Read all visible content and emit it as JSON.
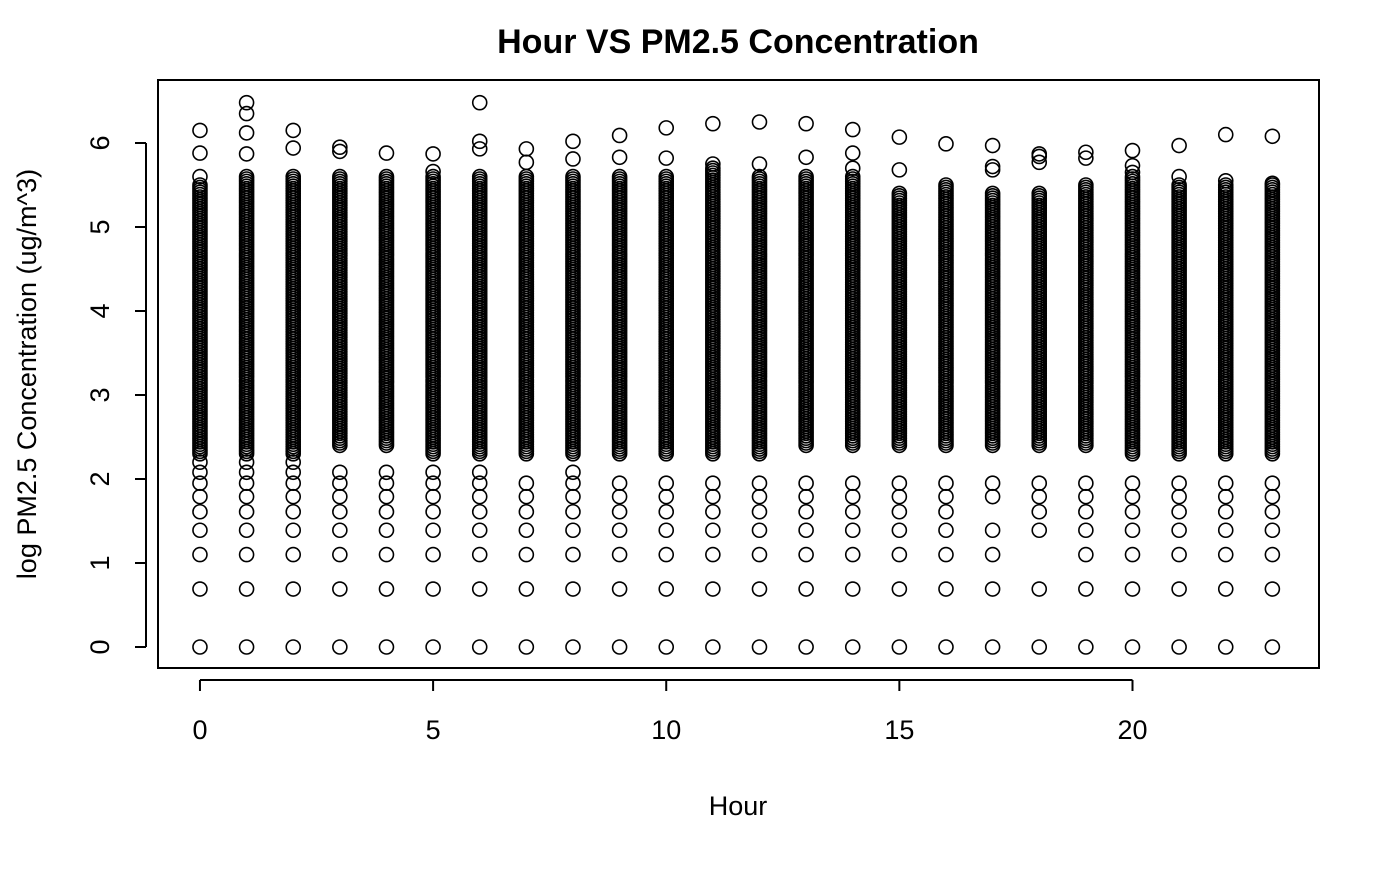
{
  "chart_data": {
    "type": "scatter",
    "title": "Hour VS PM2.5 Concentration",
    "xlabel": "Hour",
    "ylabel": "log PM2.5 Concentration (ug/m^3)",
    "xlim": [
      -0.9,
      24.0
    ],
    "ylim": [
      -0.25,
      6.75
    ],
    "xticks": [
      0,
      5,
      10,
      15,
      20
    ],
    "yticks": [
      0,
      1,
      2,
      3,
      4,
      5,
      6
    ],
    "marker": "open-circle",
    "grid": false,
    "legend": "none",
    "dense_band": {
      "description_values": "continuous overlapping points from about 2.2 to the listed top value per hour",
      "hours": [
        0,
        1,
        2,
        3,
        4,
        5,
        6,
        7,
        8,
        9,
        10,
        11,
        12,
        13,
        14,
        15,
        16,
        17,
        18,
        19,
        20,
        21,
        22,
        23
      ],
      "low": [
        2.3,
        2.3,
        2.3,
        2.4,
        2.4,
        2.3,
        2.3,
        2.3,
        2.3,
        2.3,
        2.3,
        2.3,
        2.3,
        2.4,
        2.4,
        2.4,
        2.4,
        2.4,
        2.4,
        2.4,
        2.3,
        2.3,
        2.3,
        2.3
      ],
      "high": [
        5.5,
        5.6,
        5.6,
        5.6,
        5.6,
        5.6,
        5.6,
        5.6,
        5.6,
        5.6,
        5.6,
        5.7,
        5.6,
        5.6,
        5.6,
        5.4,
        5.5,
        5.4,
        5.4,
        5.5,
        5.6,
        5.5,
        5.5,
        5.5
      ]
    },
    "points": {
      "hour": [
        0,
        0,
        0,
        0,
        0,
        0,
        0,
        0,
        0,
        0,
        0,
        0,
        1,
        1,
        1,
        1,
        1,
        1,
        1,
        1,
        1,
        1,
        1,
        1,
        1,
        2,
        2,
        2,
        2,
        2,
        2,
        2,
        2,
        2,
        2,
        2,
        3,
        3,
        3,
        3,
        3,
        3,
        3,
        3,
        3,
        3,
        4,
        4,
        4,
        4,
        4,
        4,
        4,
        4,
        4,
        5,
        5,
        5,
        5,
        5,
        5,
        5,
        5,
        5,
        5,
        6,
        6,
        6,
        6,
        6,
        6,
        6,
        6,
        6,
        6,
        6,
        7,
        7,
        7,
        7,
        7,
        7,
        7,
        7,
        7,
        8,
        8,
        8,
        8,
        8,
        8,
        8,
        8,
        8,
        8,
        9,
        9,
        9,
        9,
        9,
        9,
        9,
        9,
        9,
        10,
        10,
        10,
        10,
        10,
        10,
        10,
        10,
        10,
        11,
        11,
        11,
        11,
        11,
        11,
        11,
        11,
        11,
        12,
        12,
        12,
        12,
        12,
        12,
        12,
        12,
        12,
        13,
        13,
        13,
        13,
        13,
        13,
        13,
        13,
        13,
        14,
        14,
        14,
        14,
        14,
        14,
        14,
        14,
        14,
        14,
        15,
        15,
        15,
        15,
        15,
        15,
        15,
        15,
        15,
        16,
        16,
        16,
        16,
        16,
        16,
        16,
        16,
        17,
        17,
        17,
        17,
        17,
        17,
        17,
        17,
        17,
        18,
        18,
        18,
        18,
        18,
        18,
        18,
        18,
        18,
        19,
        19,
        19,
        19,
        19,
        19,
        19,
        19,
        19,
        20,
        20,
        20,
        20,
        20,
        20,
        20,
        20,
        20,
        20,
        21,
        21,
        21,
        21,
        21,
        21,
        21,
        21,
        21,
        22,
        22,
        22,
        22,
        22,
        22,
        22,
        22,
        22,
        23,
        23,
        23,
        23,
        23,
        23,
        23,
        23,
        23
      ],
      "logpm": [
        0,
        0.69,
        1.1,
        1.39,
        1.61,
        1.79,
        1.95,
        2.08,
        2.2,
        5.88,
        6.15,
        5.6,
        0,
        0.69,
        1.1,
        1.39,
        1.61,
        1.79,
        1.95,
        2.08,
        2.2,
        5.87,
        6.12,
        6.35,
        6.48,
        0,
        0.69,
        1.1,
        1.39,
        1.61,
        1.79,
        1.95,
        2.08,
        2.2,
        5.94,
        6.15,
        0,
        0.69,
        1.1,
        1.39,
        1.61,
        1.79,
        1.95,
        2.08,
        5.9,
        5.95,
        0,
        0.69,
        1.1,
        1.39,
        1.61,
        1.79,
        1.95,
        2.08,
        5.88,
        0,
        0.69,
        1.1,
        1.39,
        1.61,
        1.79,
        1.95,
        2.08,
        5.87,
        5.66,
        0,
        0.69,
        1.1,
        1.39,
        1.61,
        1.79,
        1.95,
        2.08,
        5.93,
        6.02,
        6.48,
        0,
        0.69,
        1.1,
        1.39,
        1.61,
        1.79,
        1.95,
        5.77,
        5.93,
        0,
        0.69,
        1.1,
        1.39,
        1.61,
        1.79,
        1.95,
        2.08,
        5.81,
        6.02,
        0,
        0.69,
        1.1,
        1.39,
        1.61,
        1.79,
        1.95,
        5.83,
        6.09,
        0,
        0.69,
        1.1,
        1.39,
        1.61,
        1.79,
        1.95,
        5.82,
        6.18,
        0,
        0.69,
        1.1,
        1.39,
        1.61,
        1.79,
        1.95,
        5.75,
        6.23,
        0,
        0.69,
        1.1,
        1.39,
        1.61,
        1.79,
        1.95,
        5.75,
        6.25,
        0,
        0.69,
        1.1,
        1.39,
        1.61,
        1.79,
        1.95,
        5.83,
        6.23,
        0,
        0.69,
        1.1,
        1.39,
        1.61,
        1.79,
        1.95,
        5.7,
        5.88,
        6.16,
        0,
        0.69,
        1.1,
        1.39,
        1.61,
        1.79,
        1.95,
        5.68,
        6.07,
        0,
        0.69,
        1.1,
        1.39,
        1.61,
        1.79,
        1.95,
        5.99,
        0,
        0.69,
        1.1,
        1.39,
        1.79,
        1.95,
        5.68,
        5.72,
        5.97,
        0,
        0.69,
        1.39,
        1.61,
        1.79,
        1.95,
        5.77,
        5.84,
        5.87,
        0,
        0.69,
        1.1,
        1.39,
        1.61,
        1.79,
        1.95,
        5.82,
        5.89,
        0,
        0.69,
        1.1,
        1.39,
        1.61,
        1.79,
        1.95,
        5.73,
        5.91,
        5.65,
        0,
        0.69,
        1.1,
        1.39,
        1.61,
        1.79,
        1.95,
        5.6,
        5.97,
        0,
        0.69,
        1.1,
        1.39,
        1.61,
        1.79,
        1.95,
        5.55,
        6.1,
        0,
        0.69,
        1.1,
        1.39,
        1.61,
        1.79,
        1.95,
        5.52,
        6.08
      ]
    }
  }
}
